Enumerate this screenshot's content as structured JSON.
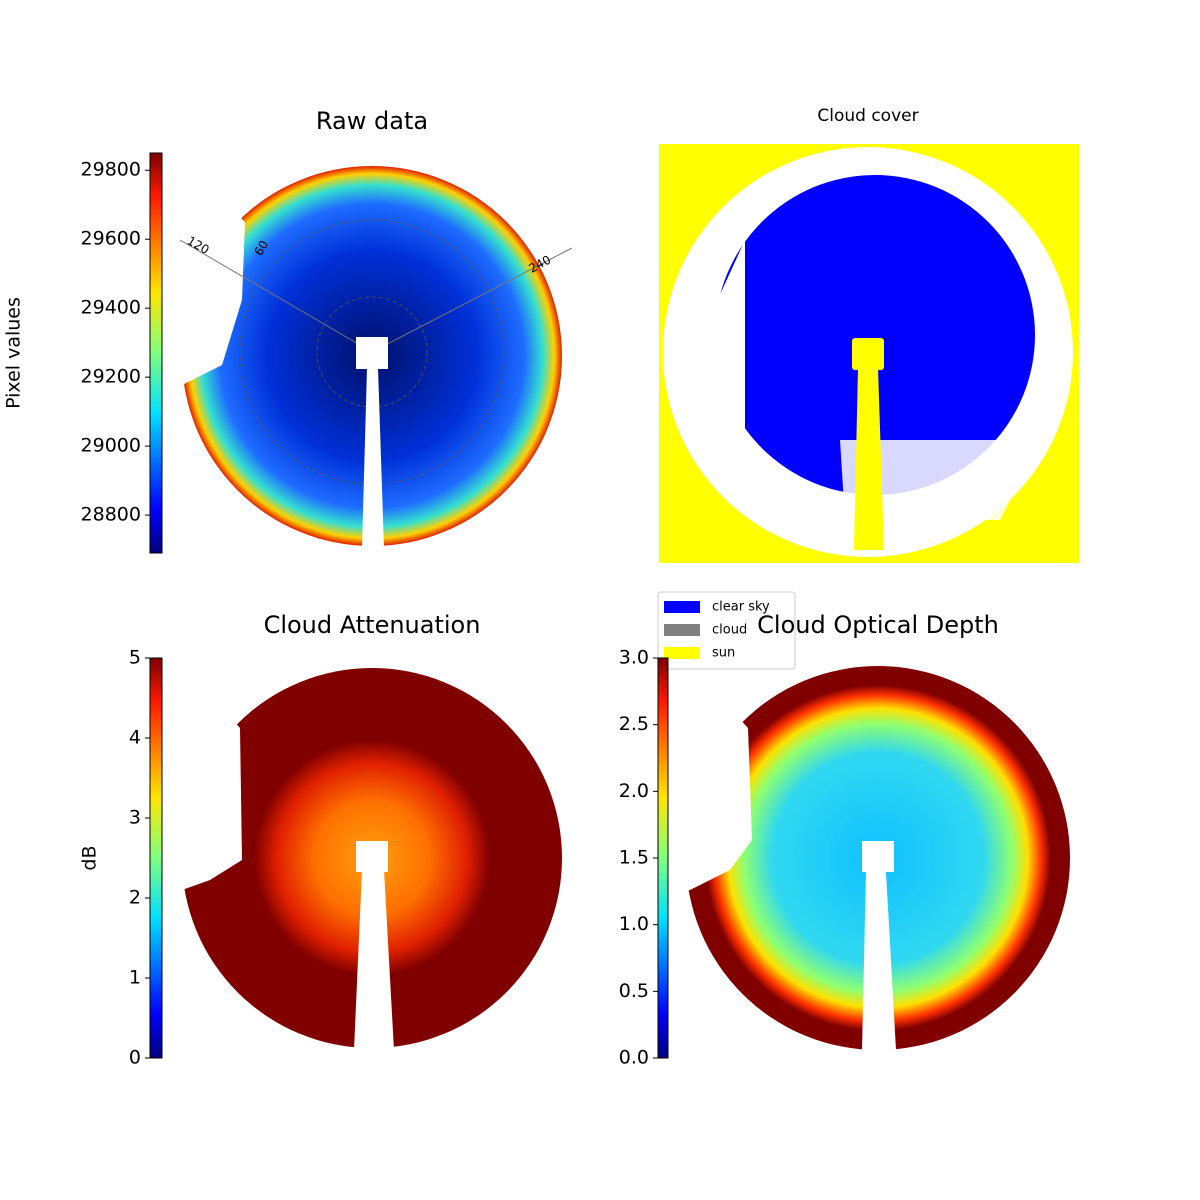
{
  "chart_data": [
    {
      "type": "image",
      "title": "Raw data",
      "colormap": "jet",
      "colorbar_label": "Pixel values",
      "ylim": [
        28690,
        29850
      ],
      "yticks": [
        28800,
        29000,
        29200,
        29400,
        29600,
        29800
      ],
      "polar_labels": [
        "120",
        "60",
        "240"
      ]
    },
    {
      "type": "image",
      "title": "Cloud cover",
      "series": [
        {
          "name": "clear sky",
          "color": "#0000ff"
        },
        {
          "name": "cloud",
          "color": "#808080"
        },
        {
          "name": "sun",
          "color": "#ffff00"
        }
      ]
    },
    {
      "type": "image",
      "title": "Cloud Attenuation",
      "colormap": "jet",
      "colorbar_label": "dB",
      "ylim": [
        0,
        5
      ],
      "yticks": [
        0,
        1,
        2,
        3,
        4,
        5
      ]
    },
    {
      "type": "image",
      "title": "Cloud Optical Depth",
      "colormap": "jet",
      "ylim": [
        0,
        3
      ],
      "yticks": [
        {
          "value": 0,
          "label": "0.0"
        },
        0.5,
        {
          "value": 1,
          "label": "1.0"
        },
        1.5,
        {
          "value": 2,
          "label": "2.0"
        },
        2.5,
        {
          "value": 3,
          "label": "3.0"
        }
      ]
    }
  ]
}
